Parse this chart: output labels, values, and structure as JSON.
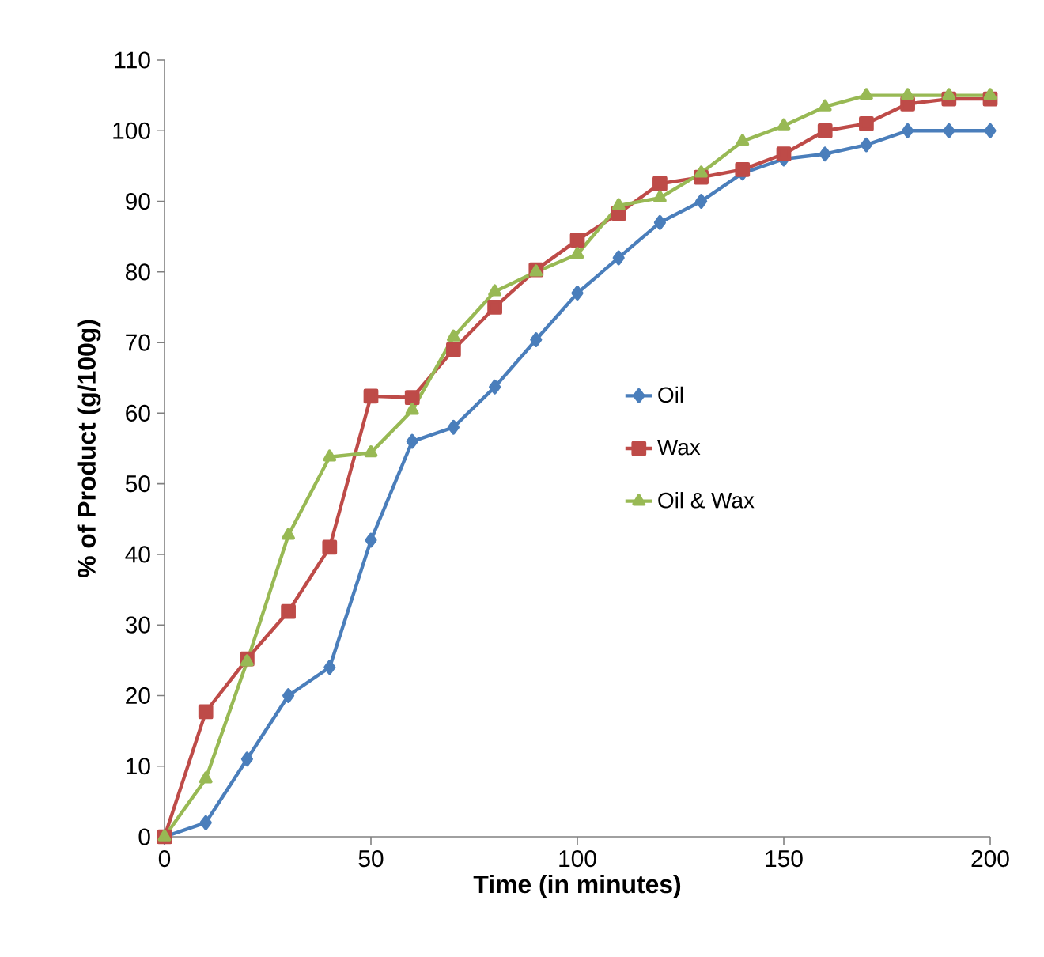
{
  "chart_data": {
    "type": "line",
    "xlabel": "Time (in minutes)",
    "ylabel": "% of Product (g/100g)",
    "x": [
      0,
      10,
      20,
      30,
      40,
      50,
      60,
      70,
      80,
      90,
      100,
      110,
      120,
      130,
      140,
      150,
      160,
      170,
      180,
      190,
      200
    ],
    "xlim": [
      0,
      200
    ],
    "xticks": [
      0,
      50,
      100,
      150,
      200
    ],
    "ylim": [
      0,
      110
    ],
    "yticks": [
      0,
      10,
      20,
      30,
      40,
      50,
      60,
      70,
      80,
      90,
      100,
      110
    ],
    "grid": false,
    "legend": "right",
    "line_style": "solid",
    "series": [
      {
        "name": "Oil",
        "color": "#4a7ebb",
        "marker": "diamond",
        "values": [
          0,
          2,
          11,
          20,
          24,
          42,
          56,
          58,
          63.7,
          70.4,
          77,
          82,
          87,
          90,
          94,
          96,
          96.7,
          98,
          100,
          100,
          100
        ]
      },
      {
        "name": "Wax",
        "color": "#be4b48",
        "marker": "square",
        "values": [
          0,
          17.7,
          25.2,
          31.9,
          41,
          62.4,
          62.2,
          69,
          75,
          80.3,
          84.5,
          88.3,
          92.5,
          93.4,
          94.5,
          96.7,
          100,
          101,
          103.8,
          104.5,
          104.5
        ]
      },
      {
        "name": "Oil & Wax",
        "color": "#98b954",
        "marker": "triangle",
        "values": [
          0,
          8.2,
          24.8,
          42.7,
          53.8,
          54.4,
          60.4,
          70.8,
          77.2,
          80,
          82.5,
          89.4,
          90.5,
          94,
          98.5,
          100.7,
          103.4,
          105,
          105,
          105,
          105
        ]
      }
    ]
  }
}
